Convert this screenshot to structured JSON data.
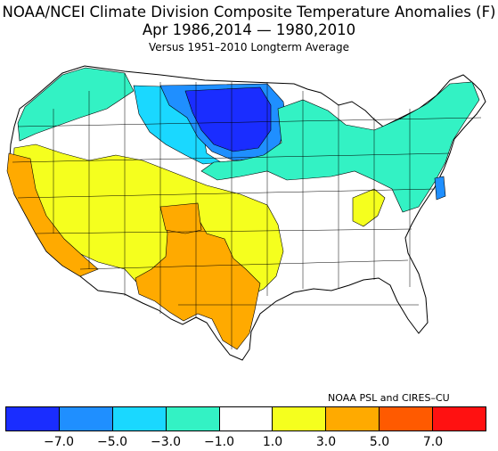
{
  "title": {
    "line1": "NOAA/NCEI Climate Division Composite Temperature Anomalies (F)",
    "line2": "Apr   1986,2014 — 1980,2010",
    "line3": "Versus 1951–2010 Longterm Average"
  },
  "credit": "NOAA PSL and CIRES–CU",
  "legend": {
    "colors": [
      "#1a2dff",
      "#1f8fff",
      "#1ad8ff",
      "#33f2c4",
      "#ffffff",
      "#f5ff1e",
      "#ffaa00",
      "#ff5a00",
      "#ff1111"
    ],
    "ticks": [
      "−7.0",
      "−5.0",
      "−3.0",
      "−1.0",
      "1.0",
      "3.0",
      "5.0",
      "7.0"
    ]
  },
  "map": {
    "region": "Contiguous United States climate divisions",
    "land_outline": "#000000",
    "regions": [
      {
        "name": "northern-plains",
        "color": "#1a2dff"
      },
      {
        "name": "minnesota-dakotas-fringe",
        "color": "#1f8fff"
      },
      {
        "name": "montana-iowa",
        "color": "#1ad8ff"
      },
      {
        "name": "great-lakes-northeast",
        "color": "#33f2c4"
      },
      {
        "name": "southwest-west",
        "color": "#f5ff1e"
      },
      {
        "name": "california-texas",
        "color": "#ffaa00"
      },
      {
        "name": "southeast-central",
        "color": "#ffffff"
      }
    ]
  }
}
